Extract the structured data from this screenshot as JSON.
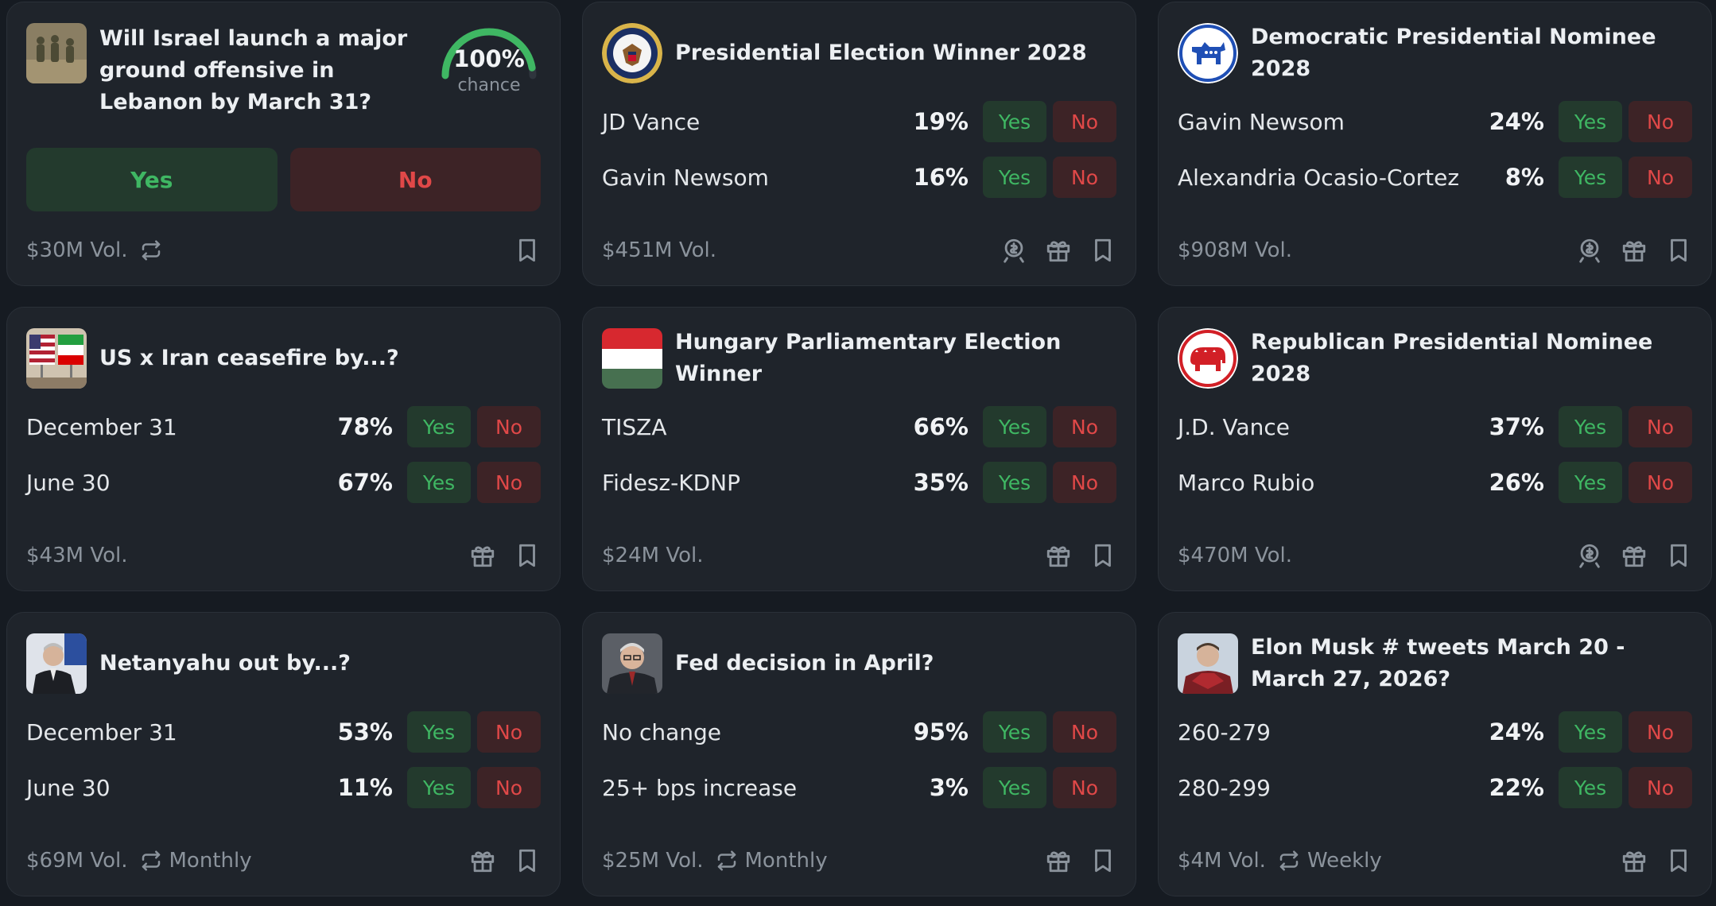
{
  "cards": [
    {
      "title": "Will Israel launch a major ground offensive in Lebanon by March 31?",
      "thumb_icon": "soldiers-photo",
      "chance_value": "100%",
      "chance_label": "chance",
      "chance_fraction": 1.0,
      "yes_label": "Yes",
      "no_label": "No",
      "volume": "$30M Vol."
    },
    {
      "title": "Presidential Election Winner 2028",
      "thumb_icon": "presidential-seal-icon",
      "outcomes": [
        {
          "label": "JD Vance",
          "pct": "19%",
          "yes": "Yes",
          "no": "No"
        },
        {
          "label": "Gavin Newsom",
          "pct": "16%",
          "yes": "Yes",
          "no": "No"
        }
      ],
      "volume": "$451M Vol."
    },
    {
      "title": "Democratic Presidential Nominee 2028",
      "thumb_icon": "democrat-donkey-icon",
      "outcomes": [
        {
          "label": "Gavin Newsom",
          "pct": "24%",
          "yes": "Yes",
          "no": "No"
        },
        {
          "label": "Alexandria Ocasio-Cortez",
          "pct": "8%",
          "yes": "Yes",
          "no": "No"
        }
      ],
      "volume": "$908M Vol."
    },
    {
      "title": "US x Iran ceasefire by...?",
      "thumb_icon": "us-iran-flags-photo",
      "outcomes": [
        {
          "label": "December 31",
          "pct": "78%",
          "yes": "Yes",
          "no": "No"
        },
        {
          "label": "June 30",
          "pct": "67%",
          "yes": "Yes",
          "no": "No"
        }
      ],
      "volume": "$43M Vol."
    },
    {
      "title": "Hungary Parliamentary Election Winner",
      "thumb_icon": "hungary-flag-icon",
      "outcomes": [
        {
          "label": "TISZA",
          "pct": "66%",
          "yes": "Yes",
          "no": "No"
        },
        {
          "label": "Fidesz-KDNP",
          "pct": "35%",
          "yes": "Yes",
          "no": "No"
        }
      ],
      "volume": "$24M Vol."
    },
    {
      "title": "Republican Presidential Nominee 2028",
      "thumb_icon": "republican-elephant-icon",
      "outcomes": [
        {
          "label": "J.D. Vance",
          "pct": "37%",
          "yes": "Yes",
          "no": "No"
        },
        {
          "label": "Marco Rubio",
          "pct": "26%",
          "yes": "Yes",
          "no": "No"
        }
      ],
      "volume": "$470M Vol."
    },
    {
      "title": "Netanyahu out by...?",
      "thumb_icon": "netanyahu-photo",
      "outcomes": [
        {
          "label": "December 31",
          "pct": "53%",
          "yes": "Yes",
          "no": "No"
        },
        {
          "label": "June 30",
          "pct": "11%",
          "yes": "Yes",
          "no": "No"
        }
      ],
      "volume": "$69M Vol.",
      "recurrence": "Monthly"
    },
    {
      "title": "Fed decision in April?",
      "thumb_icon": "fed-chair-photo",
      "outcomes": [
        {
          "label": "No change",
          "pct": "95%",
          "yes": "Yes",
          "no": "No"
        },
        {
          "label": "25+ bps increase",
          "pct": "3%",
          "yes": "Yes",
          "no": "No"
        }
      ],
      "volume": "$25M Vol.",
      "recurrence": "Monthly"
    },
    {
      "title": "Elon Musk # tweets March 20 - March 27, 2026?",
      "thumb_icon": "elon-musk-photo",
      "outcomes": [
        {
          "label": "260-279",
          "pct": "24%",
          "yes": "Yes",
          "no": "No"
        },
        {
          "label": "280-299",
          "pct": "22%",
          "yes": "Yes",
          "no": "No"
        }
      ],
      "volume": "$4M Vol.",
      "recurrence": "Weekly"
    }
  ],
  "colors": {
    "background": "#161b22",
    "card": "#1f242b",
    "yes": "#3fb763",
    "no": "#e04848"
  }
}
